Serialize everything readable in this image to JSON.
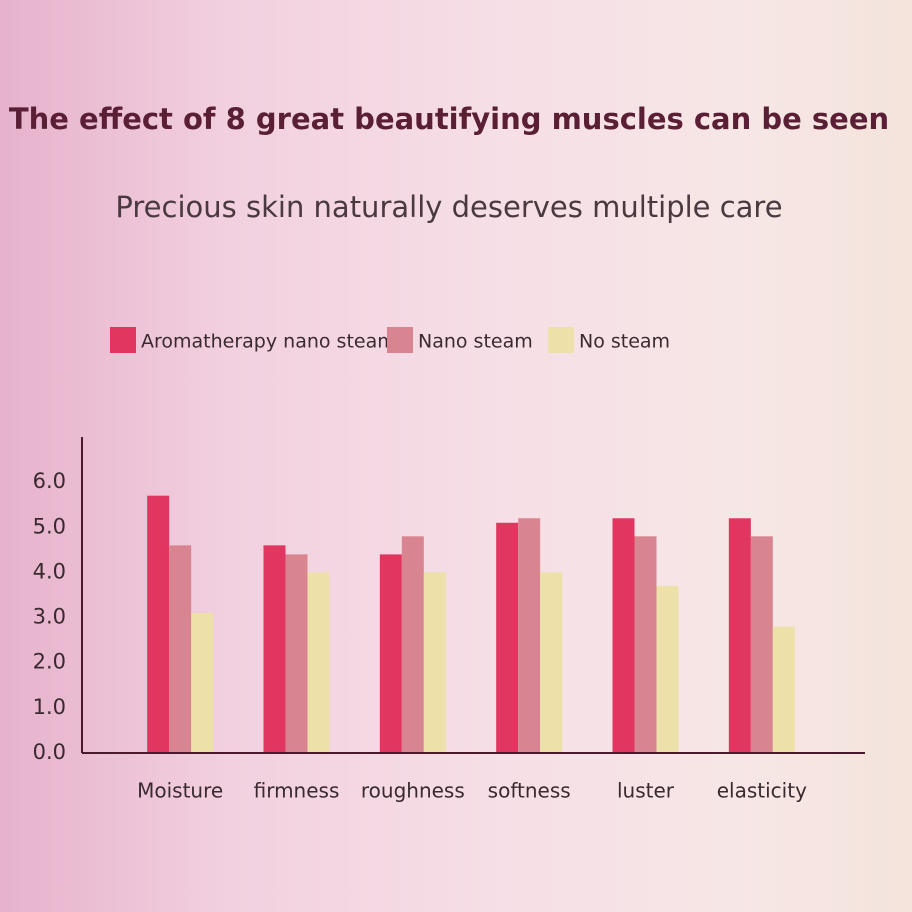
{
  "chart_data": {
    "type": "bar",
    "title": "The effect of 8 great beautifying muscles can be seen",
    "subtitle": "Precious skin naturally deserves multiple care",
    "categories": [
      "Moisture",
      "firmness",
      "roughness",
      "softness",
      "luster",
      "elasticity"
    ],
    "series": [
      {
        "name": "Aromatherapy nano steam",
        "color": "#e0365f",
        "values": [
          5.7,
          4.6,
          4.4,
          5.1,
          5.2,
          5.2
        ]
      },
      {
        "name": "Nano steam",
        "color": "#d98591",
        "values": [
          4.6,
          4.4,
          4.8,
          5.2,
          4.8,
          4.8
        ]
      },
      {
        "name": "No steam",
        "color": "#ede0a8",
        "values": [
          3.1,
          4.0,
          4.0,
          4.0,
          3.7,
          2.8
        ]
      }
    ],
    "ylim": [
      0,
      7
    ],
    "yticks": [
      {
        "value": 0,
        "label": "0.0"
      },
      {
        "value": 1,
        "label": "1.0"
      },
      {
        "value": 2,
        "label": "2.0"
      },
      {
        "value": 3,
        "label": "3.0"
      },
      {
        "value": 4,
        "label": "4.0"
      },
      {
        "value": 5,
        "label": "5.0"
      },
      {
        "value": 6,
        "label": "6.0"
      }
    ],
    "grid": false
  }
}
